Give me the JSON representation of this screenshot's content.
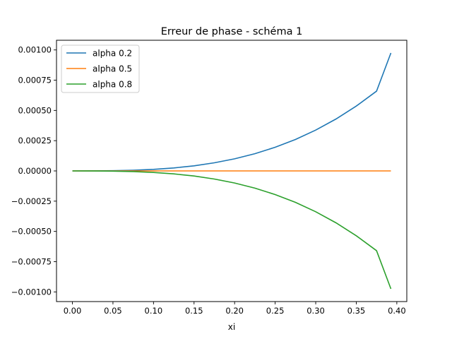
{
  "chart_data": {
    "type": "line",
    "title": "Erreur de phase - schéma 1",
    "xlabel": "xi",
    "ylabel": "",
    "xlim": [
      -0.0196,
      0.4123
    ],
    "ylim": [
      -0.00108,
      0.00108
    ],
    "xticks": [
      0.0,
      0.05,
      0.1,
      0.15,
      0.2,
      0.25,
      0.3,
      0.35,
      0.4
    ],
    "xtick_labels": [
      "0.00",
      "0.05",
      "0.10",
      "0.15",
      "0.20",
      "0.25",
      "0.30",
      "0.35",
      "0.40"
    ],
    "yticks": [
      -0.001,
      -0.00075,
      -0.0005,
      -0.00025,
      0.0,
      0.00025,
      0.0005,
      0.00075,
      0.001
    ],
    "ytick_labels": [
      "−0.00100",
      "−0.00075",
      "−0.00050",
      "−0.00025",
      "0.00000",
      "0.00025",
      "0.00050",
      "0.00075",
      "0.00100"
    ],
    "grid": false,
    "legend_position": "upper left",
    "x": [
      0.0,
      0.025,
      0.05,
      0.075,
      0.1,
      0.125,
      0.15,
      0.175,
      0.2,
      0.225,
      0.25,
      0.275,
      0.3,
      0.325,
      0.35,
      0.375,
      0.3927
    ],
    "series": [
      {
        "name": "alpha 0.2",
        "color": "#1f77b4",
        "values": [
          0.0,
          2e-07,
          1.6e-06,
          5.3e-06,
          1.25e-05,
          2.44e-05,
          4.22e-05,
          6.7e-05,
          0.0001,
          0.0001424,
          0.0001953,
          0.00026,
          0.0003375,
          0.0004291,
          0.000536,
          0.0006592,
          0.000975
        ]
      },
      {
        "name": "alpha 0.5",
        "color": "#ff7f0e",
        "values": [
          0.0,
          0.0,
          0.0,
          0.0,
          0.0,
          0.0,
          0.0,
          0.0,
          0.0,
          0.0,
          0.0,
          0.0,
          0.0,
          0.0,
          0.0,
          0.0,
          0.0
        ]
      },
      {
        "name": "alpha 0.8",
        "color": "#2ca02c",
        "values": [
          0.0,
          -2e-07,
          -1.6e-06,
          -5.3e-06,
          -1.25e-05,
          -2.44e-05,
          -4.22e-05,
          -6.7e-05,
          -0.0001,
          -0.0001424,
          -0.0001953,
          -0.00026,
          -0.0003375,
          -0.0004291,
          -0.000536,
          -0.0006592,
          -0.000975
        ]
      }
    ]
  }
}
